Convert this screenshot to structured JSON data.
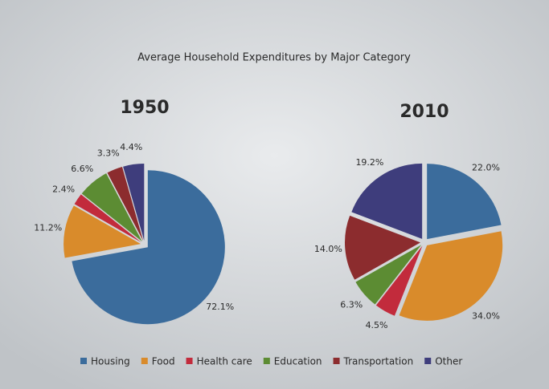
{
  "title": "Average Household Expenditures by Major Category",
  "chart_data": [
    {
      "type": "pie",
      "title": "1950",
      "categories": [
        "Housing",
        "Food",
        "Health care",
        "Education",
        "Transportation",
        "Other"
      ],
      "values": [
        72.1,
        11.2,
        2.4,
        6.6,
        3.3,
        4.4
      ],
      "value_labels": [
        "72.1%",
        "11.2%",
        "2.4%",
        "6.6%",
        "3.3%",
        "4.4%"
      ],
      "colors": [
        "#3b6c9c",
        "#d98b2b",
        "#c22b3c",
        "#5c8c33",
        "#8c2c2e",
        "#3e3d7c"
      ]
    },
    {
      "type": "pie",
      "title": "2010",
      "categories": [
        "Housing",
        "Food",
        "Health care",
        "Education",
        "Transportation",
        "Other"
      ],
      "values": [
        22.0,
        34.0,
        4.5,
        6.3,
        14.0,
        19.2
      ],
      "value_labels": [
        "22.0%",
        "34.0%",
        "4.5%",
        "6.3%",
        "14.0%",
        "19.2%"
      ],
      "colors": [
        "#3b6c9c",
        "#d98b2b",
        "#c22b3c",
        "#5c8c33",
        "#8c2c2e",
        "#3e3d7c"
      ]
    }
  ]
}
